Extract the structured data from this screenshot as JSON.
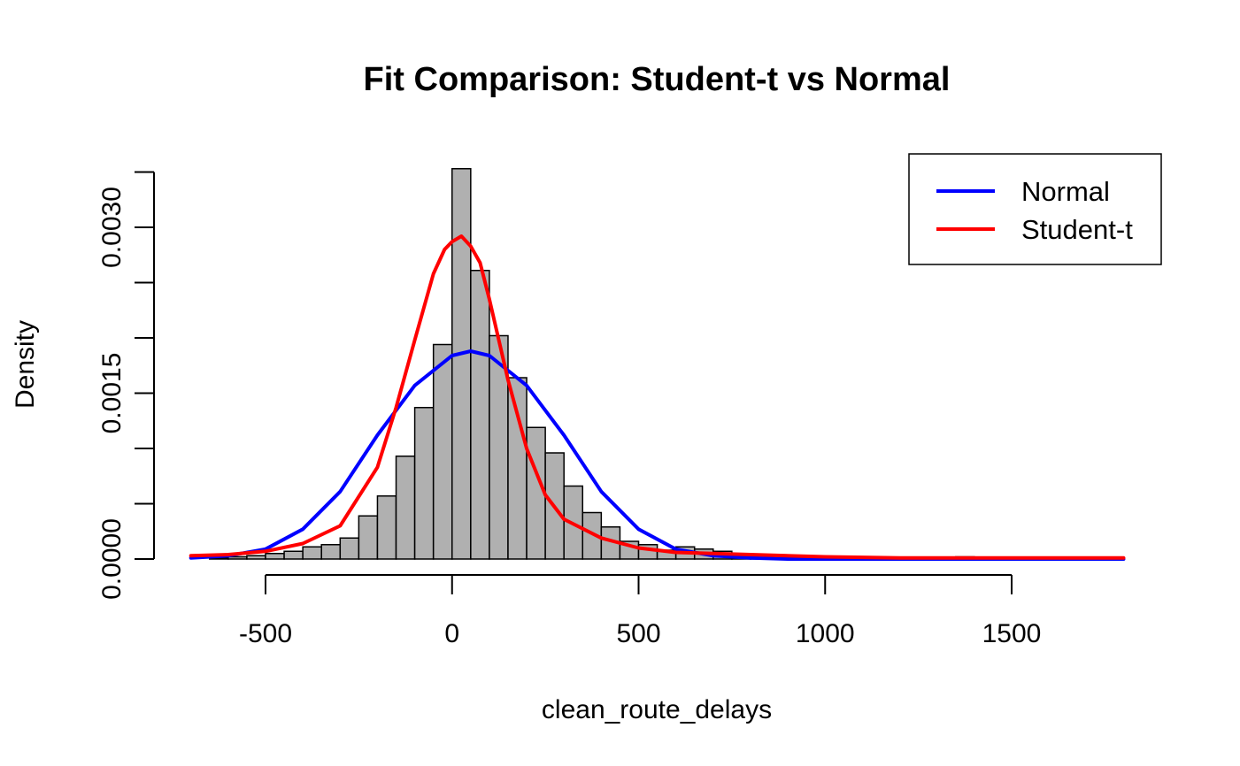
{
  "chart_data": {
    "type": "bar",
    "title": "Fit Comparison: Student-t vs Normal",
    "xlabel": "clean_route_delays",
    "ylabel": "Density",
    "xlim": [
      -700,
      1800
    ],
    "ylim": [
      0,
      0.0035
    ],
    "x_ticks": [
      -500,
      0,
      500,
      1000,
      1500
    ],
    "x_tick_labels": [
      "-500",
      "0",
      "500",
      "1000",
      "1500"
    ],
    "y_ticks": [
      0,
      0.0005,
      0.001,
      0.0015,
      0.002,
      0.0025,
      0.003,
      0.0035
    ],
    "y_tick_labels": [
      "0.0000",
      "",
      "",
      "0.0015",
      "",
      "",
      "0.0030",
      ""
    ],
    "bin_width": 50,
    "bins": [
      {
        "x0": -650,
        "x1": -600,
        "density": 1e-05
      },
      {
        "x0": -600,
        "x1": -550,
        "density": 2e-05
      },
      {
        "x0": -550,
        "x1": -500,
        "density": 3e-05
      },
      {
        "x0": -500,
        "x1": -450,
        "density": 5e-05
      },
      {
        "x0": -450,
        "x1": -400,
        "density": 7e-05
      },
      {
        "x0": -400,
        "x1": -350,
        "density": 0.00011
      },
      {
        "x0": -350,
        "x1": -300,
        "density": 0.00013
      },
      {
        "x0": -300,
        "x1": -250,
        "density": 0.00019
      },
      {
        "x0": -250,
        "x1": -200,
        "density": 0.00039
      },
      {
        "x0": -200,
        "x1": -150,
        "density": 0.00057
      },
      {
        "x0": -150,
        "x1": -100,
        "density": 0.00093
      },
      {
        "x0": -100,
        "x1": -50,
        "density": 0.00137
      },
      {
        "x0": -50,
        "x1": 0,
        "density": 0.00194
      },
      {
        "x0": 0,
        "x1": 50,
        "density": 0.00353
      },
      {
        "x0": 50,
        "x1": 100,
        "density": 0.00261
      },
      {
        "x0": 100,
        "x1": 150,
        "density": 0.00202
      },
      {
        "x0": 150,
        "x1": 200,
        "density": 0.00164
      },
      {
        "x0": 200,
        "x1": 250,
        "density": 0.00119
      },
      {
        "x0": 250,
        "x1": 300,
        "density": 0.00096
      },
      {
        "x0": 300,
        "x1": 350,
        "density": 0.00066
      },
      {
        "x0": 350,
        "x1": 400,
        "density": 0.00042
      },
      {
        "x0": 400,
        "x1": 450,
        "density": 0.00029
      },
      {
        "x0": 450,
        "x1": 500,
        "density": 0.00016
      },
      {
        "x0": 500,
        "x1": 550,
        "density": 0.00013
      },
      {
        "x0": 550,
        "x1": 600,
        "density": 8e-05
      },
      {
        "x0": 600,
        "x1": 650,
        "density": 0.00011
      },
      {
        "x0": 650,
        "x1": 700,
        "density": 9e-05
      },
      {
        "x0": 700,
        "x1": 750,
        "density": 7e-05
      },
      {
        "x0": 750,
        "x1": 800,
        "density": 5e-05
      },
      {
        "x0": 800,
        "x1": 850,
        "density": 4e-05
      },
      {
        "x0": 850,
        "x1": 900,
        "density": 3e-05
      },
      {
        "x0": 900,
        "x1": 950,
        "density": 2e-05
      },
      {
        "x0": 950,
        "x1": 1000,
        "density": 2e-05
      },
      {
        "x0": 1000,
        "x1": 1050,
        "density": 1e-05
      },
      {
        "x0": 1050,
        "x1": 1100,
        "density": 1e-05
      },
      {
        "x0": 1100,
        "x1": 1150,
        "density": 1e-05
      },
      {
        "x0": 1150,
        "x1": 1200,
        "density": 1e-05
      },
      {
        "x0": 1200,
        "x1": 1250,
        "density": 1e-05
      },
      {
        "x0": 1250,
        "x1": 1300,
        "density": 1e-05
      },
      {
        "x0": 1300,
        "x1": 1350,
        "density": 1e-05
      },
      {
        "x0": 1350,
        "x1": 1400,
        "density": 2e-05
      },
      {
        "x0": 1400,
        "x1": 1450,
        "density": 1e-05
      },
      {
        "x0": 1450,
        "x1": 1500,
        "density": 1e-05
      },
      {
        "x0": 1500,
        "x1": 1550,
        "density": 1e-05
      },
      {
        "x0": 1550,
        "x1": 1600,
        "density": 1e-05
      },
      {
        "x0": 1600,
        "x1": 1650,
        "density": 1e-05
      },
      {
        "x0": 1650,
        "x1": 1700,
        "density": 1e-05
      },
      {
        "x0": 1700,
        "x1": 1750,
        "density": 1e-05
      }
    ],
    "series": [
      {
        "name": "Normal",
        "color": "#0000ff",
        "points": [
          [
            -700,
            1e-05
          ],
          [
            -600,
            3e-05
          ],
          [
            -500,
            9e-05
          ],
          [
            -400,
            0.00027
          ],
          [
            -300,
            0.00061
          ],
          [
            -200,
            0.00112
          ],
          [
            -100,
            0.00157
          ],
          [
            0,
            0.00184
          ],
          [
            50,
            0.00188
          ],
          [
            100,
            0.00184
          ],
          [
            200,
            0.00157
          ],
          [
            300,
            0.00112
          ],
          [
            400,
            0.00061
          ],
          [
            500,
            0.00027
          ],
          [
            600,
            9e-05
          ],
          [
            700,
            3e-05
          ],
          [
            800,
            1e-05
          ],
          [
            900,
            0.0
          ],
          [
            1000,
            0.0
          ],
          [
            1200,
            0.0
          ],
          [
            1400,
            0.0
          ],
          [
            1600,
            0.0
          ],
          [
            1800,
            0.0
          ]
        ]
      },
      {
        "name": "Student-t",
        "color": "#ff0000",
        "points": [
          [
            -700,
            3e-05
          ],
          [
            -600,
            4e-05
          ],
          [
            -500,
            7e-05
          ],
          [
            -400,
            0.00014
          ],
          [
            -300,
            0.0003
          ],
          [
            -200,
            0.00083
          ],
          [
            -150,
            0.00137
          ],
          [
            -100,
            0.00198
          ],
          [
            -50,
            0.00258
          ],
          [
            -20,
            0.0028
          ],
          [
            0,
            0.00287
          ],
          [
            25,
            0.00292
          ],
          [
            50,
            0.00283
          ],
          [
            75,
            0.00268
          ],
          [
            100,
            0.00235
          ],
          [
            150,
            0.00162
          ],
          [
            200,
            0.001
          ],
          [
            250,
            0.00058
          ],
          [
            300,
            0.00036
          ],
          [
            400,
            0.00019
          ],
          [
            500,
            0.0001
          ],
          [
            600,
            6e-05
          ],
          [
            700,
            5e-05
          ],
          [
            800,
            4e-05
          ],
          [
            1000,
            2e-05
          ],
          [
            1200,
            1e-05
          ],
          [
            1400,
            1e-05
          ],
          [
            1600,
            1e-05
          ],
          [
            1800,
            1e-05
          ]
        ]
      }
    ],
    "legend": {
      "placement": "top-right",
      "entries": [
        {
          "label": "Normal",
          "color": "#0000ff"
        },
        {
          "label": "Student-t",
          "color": "#ff0000"
        }
      ]
    },
    "grid": false
  }
}
